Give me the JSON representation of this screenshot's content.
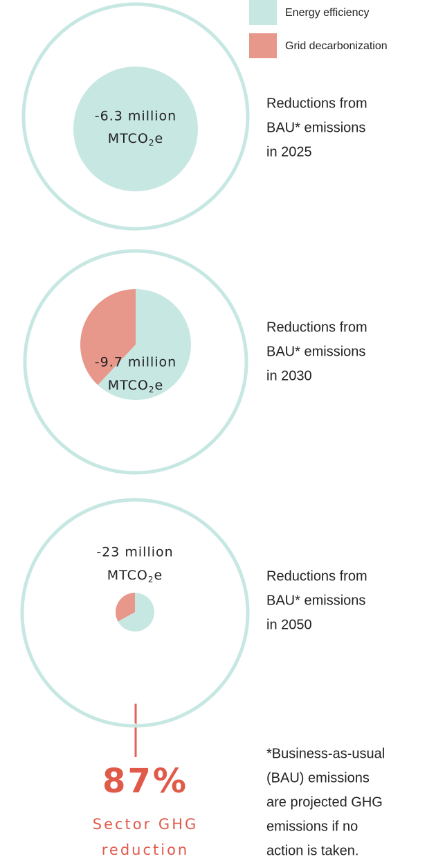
{
  "legend": [
    {
      "name": "Energy efficiency",
      "color": "#c6e7e2"
    },
    {
      "name": "Grid decarbonization",
      "color": "#e8978b"
    }
  ],
  "panels": [
    {
      "total": "-6.3 million",
      "unit": "MTCO",
      "unit_sub": "2",
      "unit_suffix": "e",
      "shares": [
        100,
        0
      ],
      "description": [
        "Reductions from",
        "BAU* emissions",
        "in 2025"
      ]
    },
    {
      "total": "-9.7 million",
      "unit": "MTCO",
      "unit_sub": "2",
      "unit_suffix": "e",
      "shares": [
        62,
        38
      ],
      "description": [
        "Reductions from",
        "BAU* emissions",
        "in 2030"
      ]
    },
    {
      "total": "-23 million",
      "unit": "MTCO",
      "unit_sub": "2",
      "unit_suffix": "e",
      "shares": [
        67,
        33
      ],
      "description": [
        "Reductions from",
        "BAU* emissions",
        "in 2050"
      ]
    }
  ],
  "highlight": {
    "value": "87%",
    "label": [
      "Sector GHG",
      "reduction"
    ]
  },
  "footnote": [
    "*Business-as-usual",
    "(BAU) emissions",
    "are projected GHG",
    "emissions if no",
    "action is taken."
  ]
}
